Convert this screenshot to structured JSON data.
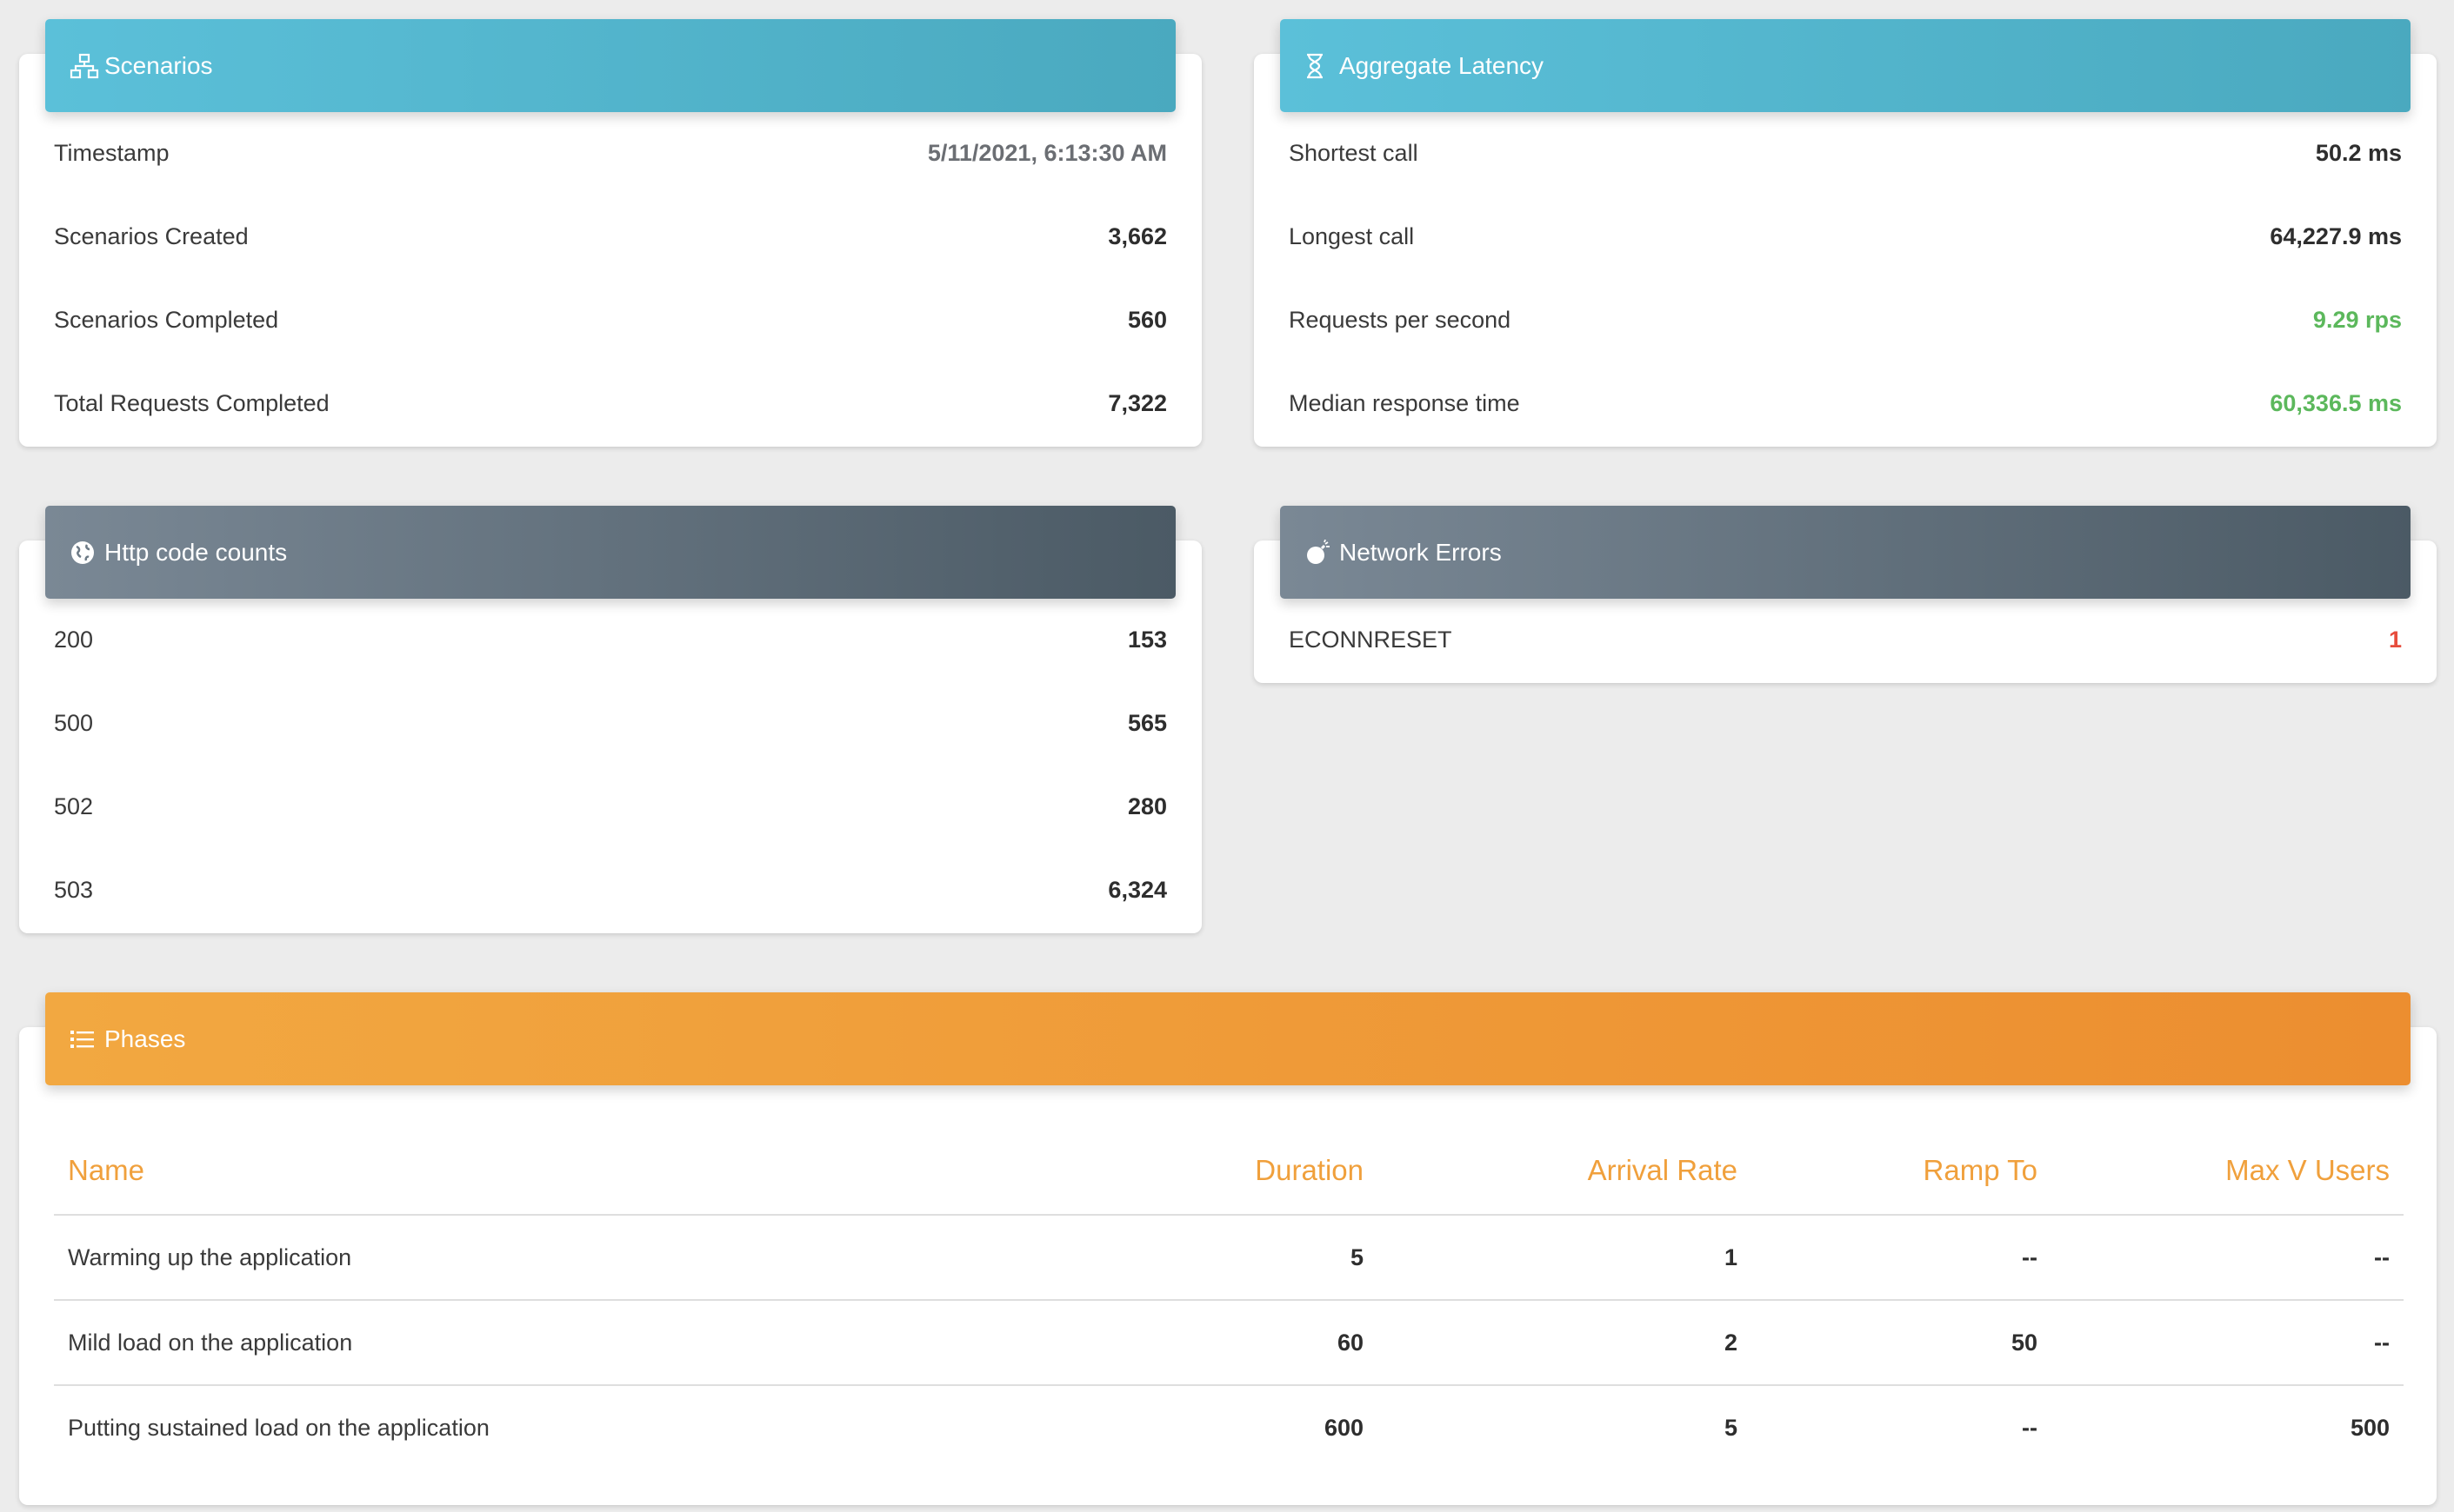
{
  "scenarios": {
    "title": "Scenarios",
    "icon": "sitemap-icon",
    "rows": [
      {
        "label": "Timestamp",
        "value": "5/11/2021, 6:13:30 AM"
      },
      {
        "label": "Scenarios Created",
        "value": "3,662"
      },
      {
        "label": "Scenarios Completed",
        "value": "560"
      },
      {
        "label": "Total Requests Completed",
        "value": "7,322"
      }
    ]
  },
  "latency": {
    "title": "Aggregate Latency",
    "icon": "hourglass-icon",
    "rows": [
      {
        "label": "Shortest call",
        "value": "50.2 ms"
      },
      {
        "label": "Longest call",
        "value": "64,227.9 ms"
      },
      {
        "label": "Requests per second",
        "value": "9.29 rps"
      },
      {
        "label": "Median response time",
        "value": "60,336.5 ms"
      }
    ]
  },
  "http_codes": {
    "title": "Http code counts",
    "icon": "globe-icon",
    "rows": [
      {
        "label": "200",
        "value": "153"
      },
      {
        "label": "500",
        "value": "565"
      },
      {
        "label": "502",
        "value": "280"
      },
      {
        "label": "503",
        "value": "6,324"
      }
    ]
  },
  "network_errors": {
    "title": "Network Errors",
    "icon": "bomb-icon",
    "rows": [
      {
        "label": "ECONNRESET",
        "value": "1"
      }
    ]
  },
  "phases": {
    "title": "Phases",
    "icon": "list-icon",
    "columns": [
      "Name",
      "Duration",
      "Arrival Rate",
      "Ramp To",
      "Max V Users"
    ],
    "rows": [
      {
        "name": "Warming up the application",
        "duration": "5",
        "arrival_rate": "1",
        "ramp_to": "--",
        "max_v_users": "--"
      },
      {
        "name": "Mild load on the application",
        "duration": "60",
        "arrival_rate": "2",
        "ramp_to": "50",
        "max_v_users": "--"
      },
      {
        "name": "Putting sustained load on the application",
        "duration": "600",
        "arrival_rate": "5",
        "ramp_to": "--",
        "max_v_users": "500"
      }
    ]
  },
  "colors": {
    "info_header": "#5bc0d9",
    "dark_header": "#5e6d79",
    "warning_header": "#f0a03c",
    "success_text": "#5cb85c",
    "danger_text": "#e74c3c"
  }
}
